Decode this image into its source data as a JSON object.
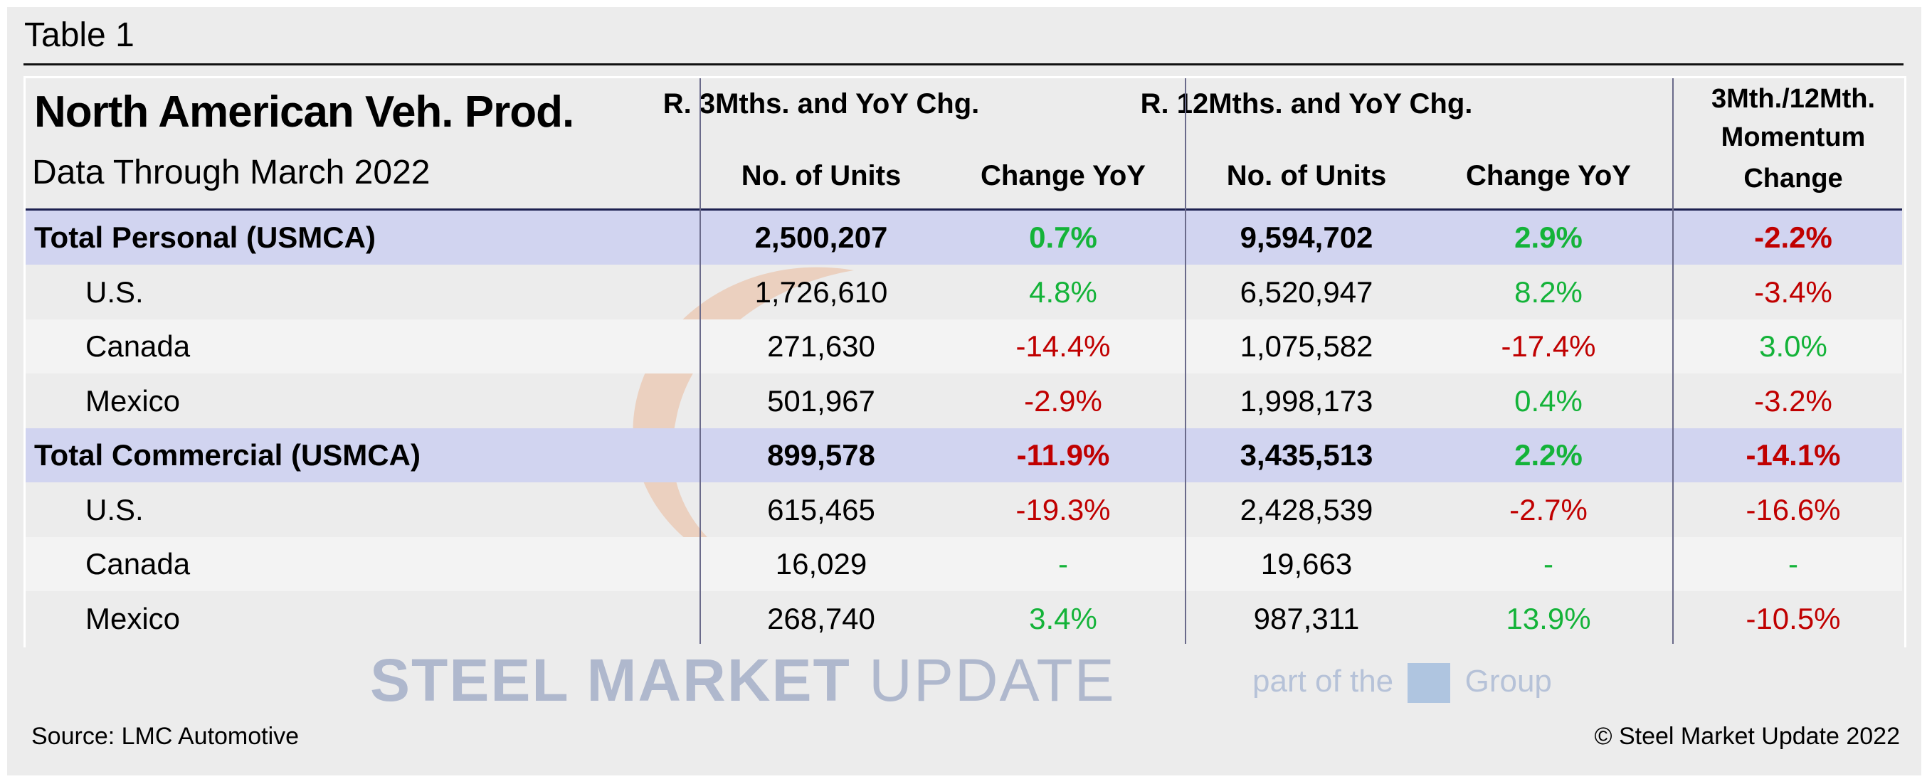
{
  "table_label": "Table 1",
  "title": "North American Veh. Prod.",
  "subtitle": "Data Through March 2022",
  "headers": {
    "group1": "R. 3Mths. and YoY Chg.",
    "group2": "R. 12Mths. and YoY Chg.",
    "group3_line1": "3Mth./12Mth.",
    "group3_line2": "Momentum",
    "group3_line3": "Change",
    "units": "No. of Units",
    "change": "Change YoY"
  },
  "rows": [
    {
      "label": "Total Personal (USMCA)",
      "type": "total",
      "u3": "2,500,207",
      "c3": "0.7%",
      "c3s": "pos",
      "u12": "9,594,702",
      "c12": "2.9%",
      "c12s": "pos",
      "mom": "-2.2%",
      "moms": "neg"
    },
    {
      "label": "U.S.",
      "type": "sub",
      "u3": "1,726,610",
      "c3": "4.8%",
      "c3s": "pos",
      "u12": "6,520,947",
      "c12": "8.2%",
      "c12s": "pos",
      "mom": "-3.4%",
      "moms": "neg"
    },
    {
      "label": "Canada",
      "type": "sub alt",
      "u3": "271,630",
      "c3": "-14.4%",
      "c3s": "neg",
      "u12": "1,075,582",
      "c12": "-17.4%",
      "c12s": "neg",
      "mom": "3.0%",
      "moms": "pos"
    },
    {
      "label": "Mexico",
      "type": "sub",
      "u3": "501,967",
      "c3": "-2.9%",
      "c3s": "neg",
      "u12": "1,998,173",
      "c12": "0.4%",
      "c12s": "pos",
      "mom": "-3.2%",
      "moms": "neg"
    },
    {
      "label": "Total Commercial (USMCA)",
      "type": "total",
      "u3": "899,578",
      "c3": "-11.9%",
      "c3s": "neg",
      "u12": "3,435,513",
      "c12": "2.2%",
      "c12s": "pos",
      "mom": "-14.1%",
      "moms": "neg"
    },
    {
      "label": "U.S.",
      "type": "sub",
      "u3": "615,465",
      "c3": "-19.3%",
      "c3s": "neg",
      "u12": "2,428,539",
      "c12": "-2.7%",
      "c12s": "neg",
      "mom": "-16.6%",
      "moms": "neg"
    },
    {
      "label": "Canada",
      "type": "sub alt",
      "u3": "16,029",
      "c3": "-",
      "c3s": "pos",
      "u12": "19,663",
      "c12": "-",
      "c12s": "pos",
      "mom": "-",
      "moms": "pos"
    },
    {
      "label": "Mexico",
      "type": "sub",
      "u3": "268,740",
      "c3": "3.4%",
      "c3s": "pos",
      "u12": "987,311",
      "c12": "13.9%",
      "c12s": "pos",
      "mom": "-10.5%",
      "moms": "neg"
    }
  ],
  "watermark": {
    "brand_bold": "STEEL MARKET",
    "brand_light": "UPDATE",
    "tagline": "part of the",
    "group": "Group"
  },
  "footer": {
    "source": "Source: LMC Automotive",
    "copyright": "© Steel Market Update 2022"
  },
  "colors": {
    "positive": "#14b339",
    "negative": "#c00000",
    "total_row": "#d1d4f0"
  }
}
